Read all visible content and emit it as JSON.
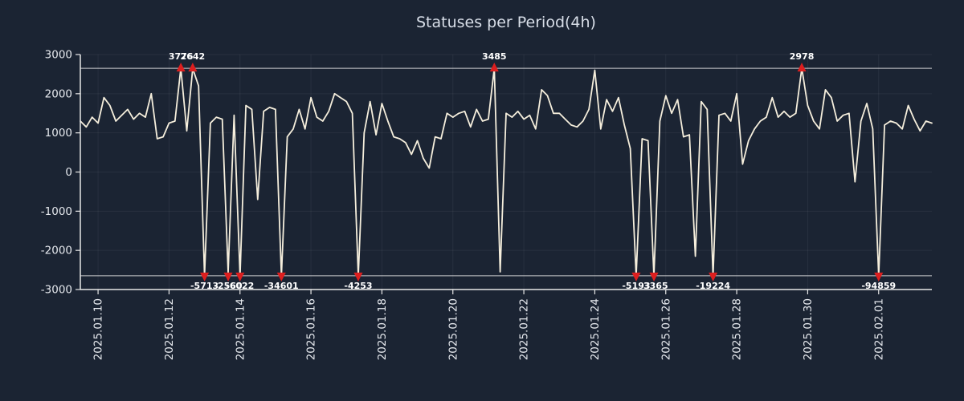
{
  "chart_data": {
    "type": "line",
    "title": "Statuses per Period(4h)",
    "xlabel": "",
    "ylabel": "",
    "start": "2025-01-09 12:00",
    "interval_hours": 4,
    "ylim": [
      -3000,
      3000
    ],
    "yticks": [
      3000,
      2000,
      1000,
      0,
      -1000,
      -2000,
      -3000
    ],
    "xtick_labels": [
      "2025.01.10",
      "2025.01.12",
      "2025.01.14",
      "2025.01.16",
      "2025.01.18",
      "2025.01.20",
      "2025.01.22",
      "2025.01.24",
      "2025.01.26",
      "2025.01.28",
      "2025.01.30",
      "2025.02.01"
    ],
    "xtick_indices": [
      3,
      15,
      27,
      39,
      51,
      63,
      75,
      87,
      99,
      111,
      123,
      135
    ],
    "clip_lines": [
      2650,
      -2650
    ],
    "grid": "faint",
    "legend": "none",
    "values": [
      1300,
      1150,
      1400,
      1250,
      1900,
      1700,
      1300,
      1450,
      1600,
      1350,
      1500,
      1400,
      2000,
      850,
      900,
      1250,
      1300,
      3776,
      1050,
      2642,
      2200,
      -5713,
      1250,
      1400,
      1350,
      -2560,
      1450,
      -6022,
      1700,
      1600,
      -700,
      1550,
      1650,
      1600,
      -34601,
      900,
      1100,
      1600,
      1100,
      1900,
      1400,
      1300,
      1550,
      2000,
      1900,
      1800,
      1500,
      -4253,
      1000,
      1800,
      950,
      1750,
      1300,
      900,
      850,
      750,
      450,
      800,
      350,
      100,
      900,
      850,
      1500,
      1400,
      1500,
      1550,
      1150,
      1600,
      1300,
      1350,
      3485,
      -2550,
      1500,
      1400,
      1550,
      1350,
      1450,
      1100,
      2100,
      1950,
      1500,
      1500,
      1350,
      1200,
      1150,
      1300,
      1600,
      2600,
      1100,
      1850,
      1550,
      1900,
      1200,
      600,
      -5193,
      850,
      800,
      -3365,
      1300,
      1950,
      1500,
      1850,
      900,
      950,
      -2150,
      1800,
      1600,
      -19224,
      1450,
      1500,
      1300,
      2000,
      200,
      800,
      1100,
      1300,
      1400,
      1900,
      1400,
      1550,
      1400,
      1500,
      2978,
      1700,
      1300,
      1100,
      2100,
      1900,
      1300,
      1450,
      1500,
      -250,
      1300,
      1750,
      1100,
      -94859,
      1200,
      1300,
      1250,
      1100,
      1700,
      1350,
      1050,
      1300,
      1250
    ],
    "annotations": [
      {
        "index": 17,
        "label": "3776",
        "side": "top"
      },
      {
        "index": 19,
        "label": "2642",
        "side": "top"
      },
      {
        "index": 70,
        "label": "3485",
        "side": "top"
      },
      {
        "index": 122,
        "label": "2978",
        "side": "top"
      },
      {
        "index": 21,
        "label": "-5713",
        "side": "bottom"
      },
      {
        "index": 25,
        "label": "-2560",
        "side": "bottom"
      },
      {
        "index": 27,
        "label": "-6022",
        "side": "bottom"
      },
      {
        "index": 34,
        "label": "-34601",
        "side": "bottom"
      },
      {
        "index": 47,
        "label": "-4253",
        "side": "bottom"
      },
      {
        "index": 94,
        "label": "-5193",
        "side": "bottom"
      },
      {
        "index": 97,
        "label": "-3365",
        "side": "bottom"
      },
      {
        "index": 107,
        "label": "-19224",
        "side": "bottom"
      },
      {
        "index": 135,
        "label": "-94859",
        "side": "bottom"
      }
    ],
    "colors": {
      "background": "#1b2433",
      "line": "#f5eedc",
      "axis": "#e8e8e8",
      "text": "#e6e9ee",
      "title": "#d8dee8",
      "marker": "#dd1f1f",
      "grid": "rgba(255,255,255,0.06)"
    }
  }
}
